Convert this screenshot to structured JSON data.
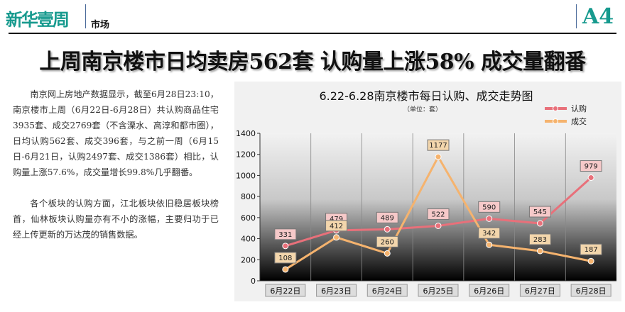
{
  "masthead": {
    "logo": "新华壹周",
    "section": "市场",
    "page": "A4"
  },
  "headline": "上周南京楼市日均卖房562套 认购量上涨58% 成交量翻番",
  "article": {
    "paragraphs": [
      "南京网上房地产数据显示，截至6月28日23:10，南京楼市上周（6月22日-6月28日）共认购商品住宅3935套、成交2769套（不含溧水、高淳和都市圈），日均认购562套、成交396套，与之前一周（6月15日-6月21日，认购2497套、成交1386套）相比，认购量上涨57.6%，成交量增长99.8%几乎翻番。",
      "各个板块的认购方面，江北板块依旧稳居板块榜首，仙林板块认购量亦有不小的涨幅，主要归功于已经上传更新的万达茂的销售数据。"
    ]
  },
  "chart_data": {
    "type": "line",
    "title": "6.22-6.28南京楼市每日认购、成交走势图",
    "subtitle": "（单位：套）",
    "categories": [
      "6月22日",
      "6月23日",
      "6月24日",
      "6月25日",
      "6月26日",
      "6月27日",
      "6月28日"
    ],
    "ylim": [
      0,
      1400
    ],
    "yticks": [
      0,
      200,
      400,
      600,
      800,
      1000,
      1200,
      1400
    ],
    "grid": "vertical",
    "legend_position": "top-right",
    "series": [
      {
        "name": "认购",
        "color": "#e8707a",
        "values": [
          331,
          479,
          489,
          522,
          590,
          545,
          979
        ]
      },
      {
        "name": "成交",
        "color": "#f5b36e",
        "values": [
          108,
          412,
          260,
          1177,
          342,
          283,
          187
        ]
      }
    ]
  }
}
